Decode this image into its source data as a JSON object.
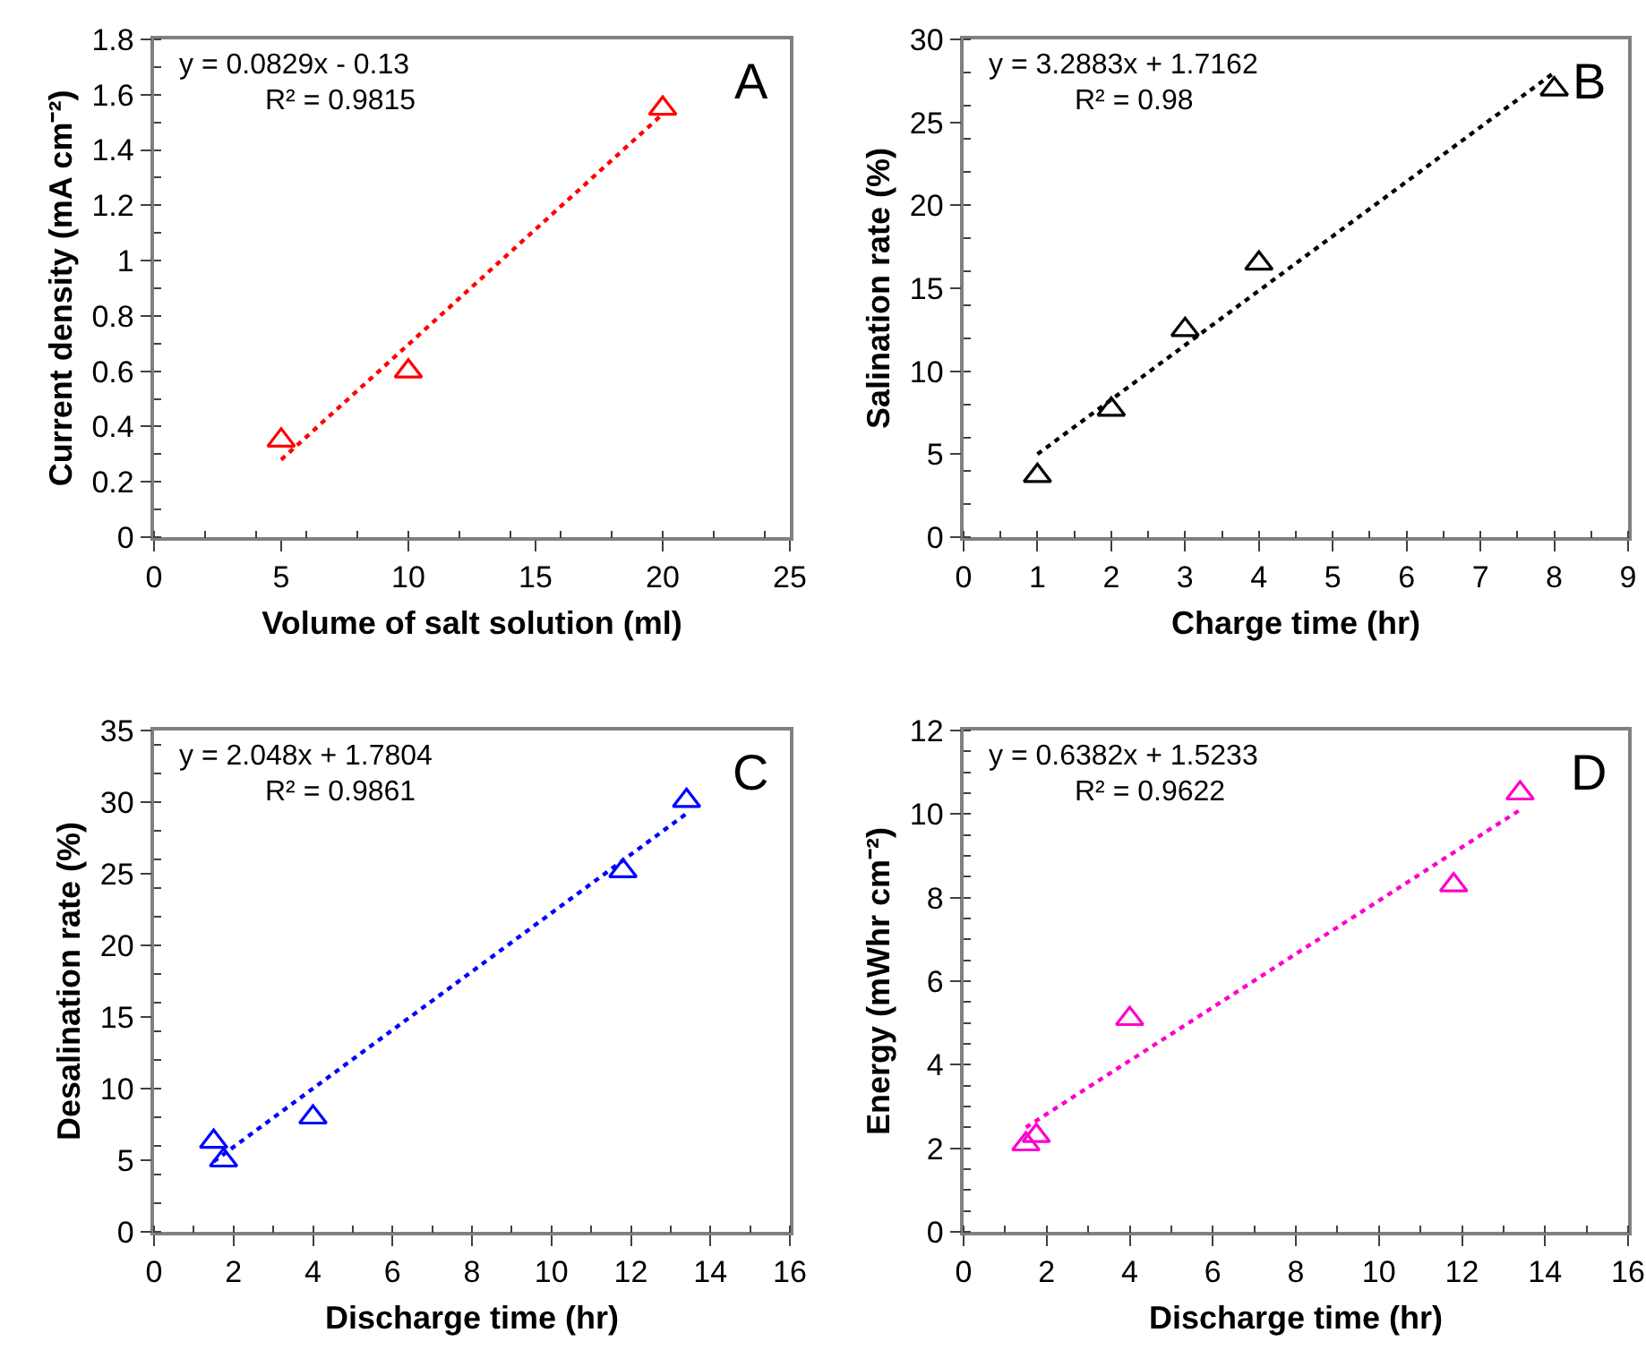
{
  "chart_data": [
    {
      "type": "scatter",
      "xlabel": "Volume of salt solution (ml)",
      "ylabel": "Current density (mA cm⁻²)",
      "annotations": [
        "y = 0.0829x - 0.13",
        "R² = 0.9815",
        "A"
      ],
      "xlim": [
        0,
        25
      ],
      "xticks": [
        0,
        5,
        10,
        15,
        20,
        25
      ],
      "ylim": [
        0,
        1.8
      ],
      "yticks": [
        0,
        0.2,
        0.4,
        0.6,
        0.8,
        1,
        1.2,
        1.4,
        1.6,
        1.8
      ],
      "series": [
        {
          "color": "#ff0000",
          "marker": "triangle",
          "x": [
            5,
            10,
            20
          ],
          "values": [
            0.35,
            0.6,
            1.55
          ]
        },
        {
          "type": "line",
          "color": "#ff0000",
          "line_style": "dotted",
          "marker": "none",
          "x": [
            5,
            20
          ],
          "values": [
            0.28,
            1.53
          ]
        }
      ]
    },
    {
      "type": "scatter",
      "xlabel": "Charge time (hr)",
      "ylabel": "Salination rate (%)",
      "annotations": [
        "y = 3.2883x + 1.7162",
        "R² = 0.98",
        "B"
      ],
      "xlim": [
        0,
        9
      ],
      "xticks": [
        0,
        1,
        2,
        3,
        4,
        5,
        6,
        7,
        8,
        9
      ],
      "ylim": [
        0,
        30
      ],
      "yticks": [
        0,
        5,
        10,
        15,
        20,
        25,
        30
      ],
      "series": [
        {
          "color": "#000000",
          "marker": "triangle",
          "x": [
            1,
            2,
            3,
            4,
            8
          ],
          "values": [
            3.7,
            7.7,
            12.5,
            16.5,
            27
          ]
        },
        {
          "type": "line",
          "color": "#000000",
          "line_style": "dotted",
          "marker": "none",
          "x": [
            1,
            8
          ],
          "values": [
            5.0,
            28.0
          ]
        }
      ]
    },
    {
      "type": "scatter",
      "xlabel": "Discharge time (hr)",
      "ylabel": "Desalination rate (%)",
      "annotations": [
        "y = 2.048x + 1.7804",
        "R² = 0.9861",
        "C"
      ],
      "xlim": [
        0,
        16
      ],
      "xticks": [
        0,
        2,
        4,
        6,
        8,
        10,
        12,
        14,
        16
      ],
      "ylim": [
        0,
        35
      ],
      "yticks": [
        0,
        5,
        10,
        15,
        20,
        25,
        30,
        35
      ],
      "series": [
        {
          "color": "#0000ff",
          "marker": "triangle",
          "x": [
            1.5,
            1.75,
            4,
            11.8,
            13.4
          ],
          "values": [
            6.3,
            5.0,
            8.0,
            25.2,
            30.1
          ]
        },
        {
          "type": "line",
          "color": "#0000ff",
          "line_style": "dotted",
          "marker": "none",
          "x": [
            1.5,
            13.4
          ],
          "values": [
            4.9,
            29.2
          ]
        }
      ]
    },
    {
      "type": "scatter",
      "xlabel": "Discharge time (hr)",
      "ylabel": "Energy (mWhr cm⁻²)",
      "annotations": [
        "y = 0.6382x + 1.5233",
        "R² = 0.9622",
        "D"
      ],
      "xlim": [
        0,
        16
      ],
      "xticks": [
        0,
        2,
        4,
        6,
        8,
        10,
        12,
        14,
        16
      ],
      "ylim": [
        0,
        12
      ],
      "yticks": [
        0,
        2,
        4,
        6,
        8,
        10,
        12
      ],
      "series": [
        {
          "color": "#ff00cc",
          "marker": "triangle",
          "x": [
            1.5,
            1.75,
            4,
            11.8,
            13.4
          ],
          "values": [
            2.1,
            2.3,
            5.1,
            8.3,
            10.5
          ]
        },
        {
          "type": "line",
          "color": "#ff00cc",
          "line_style": "dotted",
          "marker": "none",
          "x": [
            1.5,
            13.4
          ],
          "values": [
            2.5,
            10.1
          ]
        }
      ]
    }
  ]
}
